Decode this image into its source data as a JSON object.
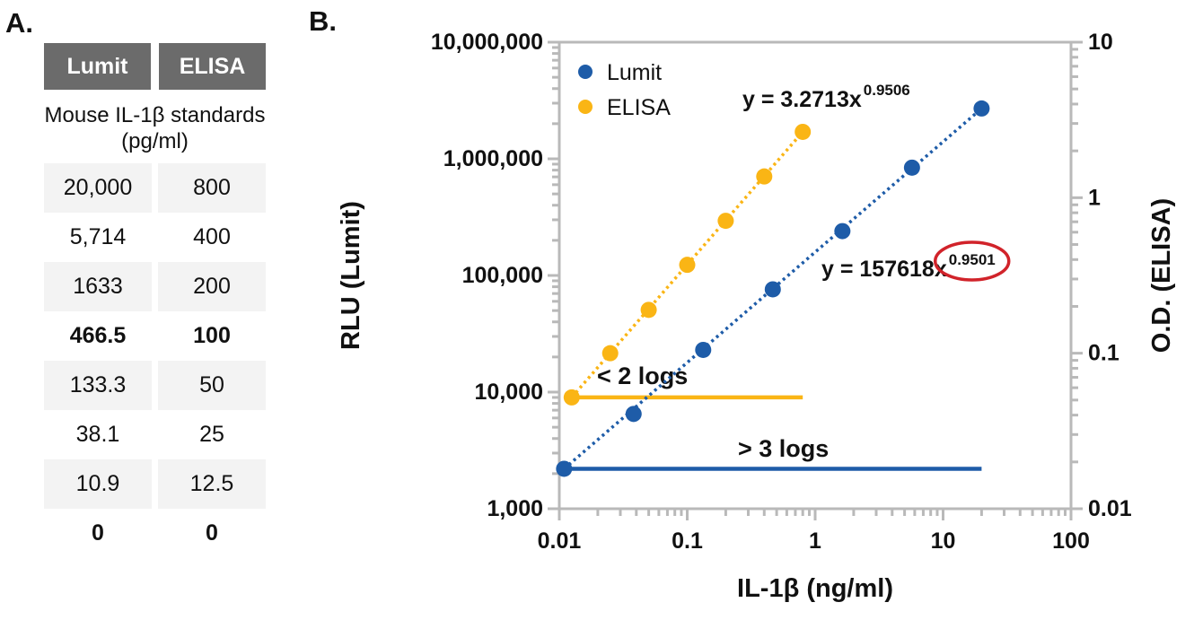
{
  "panel_a": {
    "label": "A.",
    "table": {
      "headers": [
        "Lumit",
        "ELISA"
      ],
      "subheader": "Mouse IL-1β standards (pg/ml)",
      "rows": [
        {
          "lumit": "20,000",
          "elisa": "800",
          "bold": false
        },
        {
          "lumit": "5,714",
          "elisa": "400",
          "bold": false
        },
        {
          "lumit": "1633",
          "elisa": "200",
          "bold": false
        },
        {
          "lumit": "466.5",
          "elisa": "100",
          "bold": true
        },
        {
          "lumit": "133.3",
          "elisa": "50",
          "bold": false
        },
        {
          "lumit": "38.1",
          "elisa": "25",
          "bold": false
        },
        {
          "lumit": "10.9",
          "elisa": "12.5",
          "bold": false
        },
        {
          "lumit": "0",
          "elisa": "0",
          "bold": true
        }
      ]
    }
  },
  "panel_b_label": "B.",
  "chart_data": {
    "type": "scatter",
    "title": "",
    "xlabel": "IL-1β (ng/ml)",
    "x_scale": "log",
    "xlim": [
      0.01,
      100
    ],
    "x_ticks": [
      "0.01",
      "0.1",
      "1",
      "10",
      "100"
    ],
    "ylabel_left": "RLU (Lumit)",
    "y_left_scale": "log",
    "ylim_left": [
      1000,
      10000000
    ],
    "y_left_ticks": [
      "1,000",
      "10,000",
      "100,000",
      "1,000,000",
      "10,000,000"
    ],
    "ylabel_right": "O.D. (ELISA)",
    "y_right_scale": "log",
    "ylim_right": [
      0.01,
      10
    ],
    "y_right_ticks": [
      "0.01",
      "0.1",
      "1",
      "10"
    ],
    "grid": false,
    "legend": [
      "Lumit",
      "ELISA"
    ],
    "legend_position": "top-left-inside",
    "series": [
      {
        "name": "Lumit",
        "axis": "left",
        "color": "#1E5CA8",
        "marker": "circle",
        "line_style": "dotted",
        "x": [
          0.0109,
          0.0381,
          0.1333,
          0.4665,
          1.633,
          5.714,
          20
        ],
        "y": [
          2200,
          6500,
          23000,
          76000,
          240000,
          840000,
          2700000
        ],
        "trendline_equation": "y = 157618x^0.9501"
      },
      {
        "name": "ELISA",
        "axis": "right",
        "color": "#FAB515",
        "marker": "circle",
        "line_style": "dotted",
        "x": [
          0.0125,
          0.025,
          0.05,
          0.1,
          0.2,
          0.4,
          0.8
        ],
        "y": [
          0.052,
          0.1,
          0.19,
          0.37,
          0.71,
          1.37,
          2.65
        ],
        "trendline_equation": "y = 3.2713x^0.9506"
      }
    ],
    "equations": [
      {
        "prefix": "y = 3.2713x",
        "exponent": "0.9506",
        "color": "#FAB515",
        "circled": false
      },
      {
        "prefix": "y = 157618x",
        "exponent": "0.9501",
        "color": "#1E5CA8",
        "circled": true,
        "circle_color": "#D1232A"
      }
    ],
    "range_annotations": [
      {
        "text": "< 2 logs",
        "series": "ELISA",
        "axis": "right",
        "x_start": 0.0125,
        "x_end": 0.8,
        "at_y": 0.052,
        "line_color": "#FAB515"
      },
      {
        "text": "> 3 logs",
        "series": "Lumit",
        "axis": "left",
        "x_start": 0.0109,
        "x_end": 20,
        "at_y": 2200,
        "line_color": "#1E5CA8"
      }
    ]
  },
  "colors": {
    "axis": "#B9B9B9",
    "table_header_bg": "#6B6B6B",
    "table_row_alt_bg": "#F3F3F3",
    "lumit_blue": "#1E5CA8",
    "elisa_yellow": "#FAB515",
    "circle_red": "#D1232A",
    "text": "#111111"
  }
}
